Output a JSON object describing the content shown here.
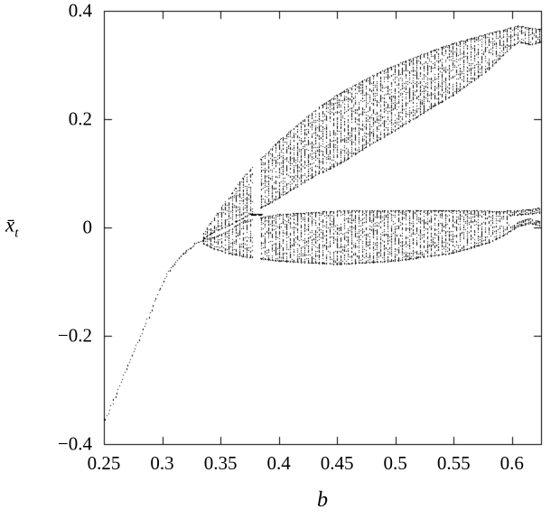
{
  "figure": {
    "background": "#ffffff",
    "point_color": "#000000",
    "frame_color": "#000000"
  },
  "chart_data": {
    "type": "scatter",
    "title": "",
    "xlabel": "b",
    "ylabel": "x̄_t",
    "ylabel_base": "x̄",
    "ylabel_sub": "t",
    "xlim": [
      0.25,
      0.625
    ],
    "ylim": [
      -0.4,
      0.4
    ],
    "xticks": [
      0.25,
      0.3,
      0.35,
      0.4,
      0.45,
      0.5,
      0.55,
      0.6
    ],
    "xtick_labels": [
      "0.25",
      "0.3",
      "0.35",
      "0.4",
      "0.45",
      "0.5",
      "0.55",
      "0.6"
    ],
    "yticks": [
      -0.4,
      -0.2,
      0,
      0.2,
      0.4
    ],
    "ytick_labels": [
      "−0.4",
      "−0.2",
      "0",
      "0.2",
      "0.4"
    ],
    "grid": false,
    "legend": null,
    "description": "Bifurcation diagram of the mean state x̄_t versus parameter b: a single stable branch rises from (0.25, −0.36) to about −0.02 near b≈0.33, where it splits into two densely stippled chaotic bands; the upper band climbs to x̄≈0.37 at b≈0.6, the lower band forms a lens around x̄≈0 (−0.07…+0.03), with a narrow periodic window near b≈0.38.",
    "series": [
      {
        "name": "stable-fixed-point-branch",
        "kind": "dotted-curve",
        "points": [
          [
            0.25,
            -0.36
          ],
          [
            0.256,
            -0.33
          ],
          [
            0.262,
            -0.298
          ],
          [
            0.268,
            -0.266
          ],
          [
            0.274,
            -0.236
          ],
          [
            0.28,
            -0.206
          ],
          [
            0.286,
            -0.176
          ],
          [
            0.29,
            -0.155
          ],
          [
            0.294,
            -0.132
          ],
          [
            0.298,
            -0.11
          ],
          [
            0.302,
            -0.092
          ],
          [
            0.306,
            -0.078
          ],
          [
            0.31,
            -0.066
          ],
          [
            0.314,
            -0.056
          ],
          [
            0.318,
            -0.047
          ],
          [
            0.322,
            -0.04
          ],
          [
            0.326,
            -0.033
          ],
          [
            0.33,
            -0.027
          ],
          [
            0.335,
            -0.022
          ]
        ]
      },
      {
        "name": "upper-chaotic-band",
        "kind": "stippled-band",
        "b_start": 0.335,
        "b_end": 0.625,
        "envelope_bottom": [
          [
            0.335,
            -0.02
          ],
          [
            0.345,
            -0.008
          ],
          [
            0.355,
            0.002
          ],
          [
            0.37,
            0.018
          ],
          [
            0.4,
            0.055
          ],
          [
            0.43,
            0.095
          ],
          [
            0.45,
            0.115
          ],
          [
            0.48,
            0.155
          ],
          [
            0.5,
            0.18
          ],
          [
            0.53,
            0.22
          ],
          [
            0.55,
            0.245
          ],
          [
            0.58,
            0.292
          ],
          [
            0.595,
            0.325
          ],
          [
            0.605,
            0.342
          ],
          [
            0.615,
            0.338
          ],
          [
            0.625,
            0.342
          ]
        ],
        "envelope_top": [
          [
            0.335,
            -0.01
          ],
          [
            0.345,
            0.02
          ],
          [
            0.355,
            0.05
          ],
          [
            0.37,
            0.095
          ],
          [
            0.4,
            0.16
          ],
          [
            0.43,
            0.215
          ],
          [
            0.45,
            0.245
          ],
          [
            0.48,
            0.28
          ],
          [
            0.5,
            0.3
          ],
          [
            0.53,
            0.325
          ],
          [
            0.55,
            0.34
          ],
          [
            0.58,
            0.358
          ],
          [
            0.595,
            0.366
          ],
          [
            0.605,
            0.372
          ],
          [
            0.615,
            0.368
          ],
          [
            0.625,
            0.366
          ]
        ]
      },
      {
        "name": "lower-chaotic-band",
        "kind": "stippled-band",
        "b_start": 0.335,
        "b_end": 0.625,
        "split_after": 0.597,
        "split_strip": 0.008,
        "envelope_bottom": [
          [
            0.335,
            -0.03
          ],
          [
            0.345,
            -0.04
          ],
          [
            0.355,
            -0.047
          ],
          [
            0.37,
            -0.054
          ],
          [
            0.4,
            -0.062
          ],
          [
            0.45,
            -0.068
          ],
          [
            0.5,
            -0.062
          ],
          [
            0.55,
            -0.047
          ],
          [
            0.58,
            -0.028
          ],
          [
            0.595,
            -0.012
          ],
          [
            0.605,
            0.002
          ],
          [
            0.615,
            0.008
          ],
          [
            0.625,
            0.002
          ]
        ],
        "envelope_top": [
          [
            0.335,
            -0.022
          ],
          [
            0.345,
            -0.018
          ],
          [
            0.355,
            -0.008
          ],
          [
            0.37,
            0.012
          ],
          [
            0.4,
            0.024
          ],
          [
            0.45,
            0.03
          ],
          [
            0.5,
            0.031
          ],
          [
            0.55,
            0.031
          ],
          [
            0.58,
            0.03
          ],
          [
            0.595,
            0.03
          ],
          [
            0.605,
            0.031
          ],
          [
            0.615,
            0.033
          ],
          [
            0.625,
            0.036
          ]
        ]
      },
      {
        "name": "periodic-window",
        "kind": "window",
        "gaps": [
          {
            "b0": 0.377,
            "b1": 0.3835
          }
        ],
        "orbit_segments": [
          {
            "x": 0.0255,
            "b0": 0.3755,
            "b1": 0.3855
          }
        ]
      }
    ]
  }
}
